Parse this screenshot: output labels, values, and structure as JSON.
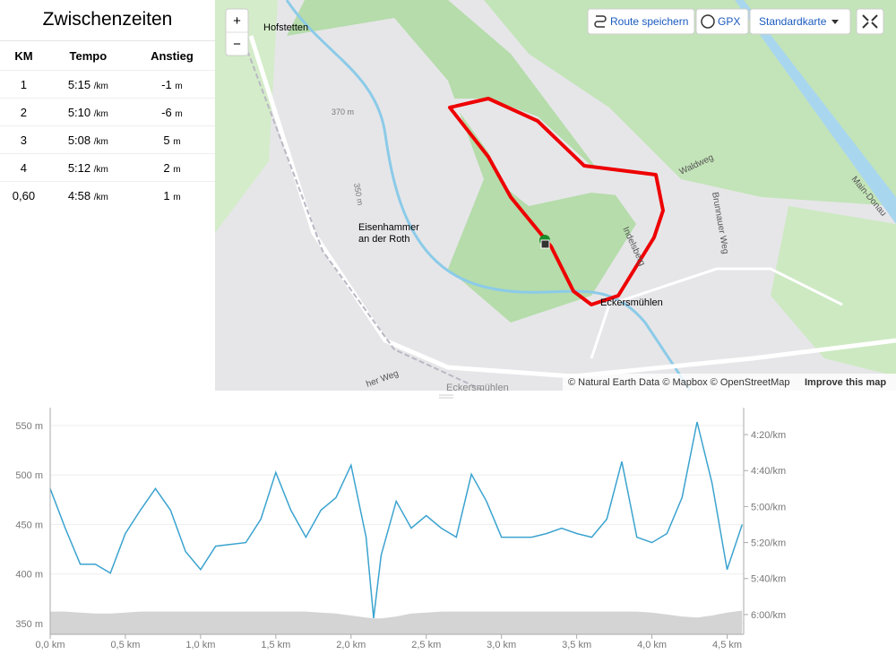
{
  "splits": {
    "title": "Zwischenzeiten",
    "headers": [
      "KM",
      "Tempo",
      "Anstieg"
    ],
    "rows": [
      {
        "km": "1",
        "pace": "5:15",
        "pace_unit": "/km",
        "climb": "-1",
        "climb_unit": "m"
      },
      {
        "km": "2",
        "pace": "5:10",
        "pace_unit": "/km",
        "climb": "-6",
        "climb_unit": "m"
      },
      {
        "km": "3",
        "pace": "5:08",
        "pace_unit": "/km",
        "climb": "5",
        "climb_unit": "m"
      },
      {
        "km": "4",
        "pace": "5:12",
        "pace_unit": "/km",
        "climb": "2",
        "climb_unit": "m"
      },
      {
        "km": "0,60",
        "pace": "4:58",
        "pace_unit": "/km",
        "climb": "1",
        "climb_unit": "m"
      }
    ]
  },
  "map": {
    "buttons": {
      "save": "Route speichern",
      "gpx": "GPX",
      "style": "Standardkarte",
      "zoom_in": "+",
      "zoom_out": "−"
    },
    "labels": {
      "hofstetten": "Hofstetten",
      "eisenhammer_1": "Eisenhammer",
      "eisenhammer_2": "an der Roth",
      "eckersmuehlen": "Eckersmühlen",
      "eckersmuehlen_2": "Eckersmühlen",
      "waldweg": "Waldweg",
      "brunnauer": "Brunnauer Weg",
      "contour_370": "370 m",
      "contour_350": "350 m",
      "canal": "Main-Donau",
      "weg": "her Weg",
      "indel": "Indelsberg"
    },
    "attribution": "© Natural Earth Data © Mapbox © OpenStreetMap",
    "improve": "Improve this map"
  },
  "chart_data": {
    "type": "line",
    "x": [
      0,
      0.1,
      0.2,
      0.3,
      0.4,
      0.5,
      0.6,
      0.7,
      0.8,
      0.9,
      1.0,
      1.1,
      1.2,
      1.3,
      1.4,
      1.5,
      1.6,
      1.7,
      1.8,
      1.9,
      2.0,
      2.1,
      2.15,
      2.2,
      2.3,
      2.4,
      2.5,
      2.6,
      2.7,
      2.8,
      2.9,
      3.0,
      3.1,
      3.2,
      3.3,
      3.4,
      3.5,
      3.6,
      3.7,
      3.8,
      3.9,
      4.0,
      4.1,
      4.2,
      4.3,
      4.4,
      4.5,
      4.6
    ],
    "series": [
      {
        "color": "#3ba3cf",
        "axis": "y2",
        "values": [
          290,
          312,
          332,
          332,
          337,
          315,
          302,
          290,
          302,
          325,
          335,
          322,
          321,
          320,
          307,
          281,
          302,
          317,
          302,
          295,
          277,
          317,
          362,
          327,
          297,
          312,
          305,
          312,
          317,
          282,
          297,
          317,
          317,
          317,
          315,
          312,
          315,
          317,
          307,
          275,
          317,
          320,
          315,
          295,
          253,
          287,
          335,
          310
        ]
      },
      {
        "color": "#d4d4d4",
        "fill": true,
        "values": [
          362,
          362,
          361,
          360,
          360,
          361,
          362,
          362,
          362,
          362,
          362,
          362,
          362,
          362,
          362,
          362,
          362,
          362,
          361,
          360,
          358,
          356,
          355,
          355,
          357,
          360,
          361,
          362,
          362,
          362,
          362,
          362,
          362,
          362,
          362,
          362,
          362,
          362,
          362,
          362,
          362,
          361,
          359,
          357,
          356,
          358,
          361,
          363
        ]
      }
    ],
    "xlim": [
      0,
      4.61
    ],
    "xticks": [
      {
        "value": 0,
        "label": "0,0 km"
      },
      {
        "value": 0.5,
        "label": "0,5 km"
      },
      {
        "value": 1,
        "label": "1,0 km"
      },
      {
        "value": 1.5,
        "label": "1,5 km"
      },
      {
        "value": 2,
        "label": "2,0 km"
      },
      {
        "value": 2.5,
        "label": "2,5 km"
      },
      {
        "value": 3,
        "label": "3,0 km"
      },
      {
        "value": 3.5,
        "label": "3,5 km"
      },
      {
        "value": 4,
        "label": "4,0 km"
      },
      {
        "value": 4.5,
        "label": "4,5 km"
      }
    ],
    "ylim": [
      339,
      559
    ],
    "yticks": [
      {
        "value": 350,
        "label": "350 m"
      },
      {
        "value": 400,
        "label": "400 m"
      },
      {
        "value": 450,
        "label": "450 m"
      },
      {
        "value": 500,
        "label": "500 m"
      },
      {
        "value": 550,
        "label": "550 m"
      }
    ],
    "y2lim": [
      371,
      250
    ],
    "y2ticks": [
      {
        "value": 260,
        "label": "4:20/km"
      },
      {
        "value": 280,
        "label": "4:40/km"
      },
      {
        "value": 300,
        "label": "5:00/km"
      },
      {
        "value": 320,
        "label": "5:20/km"
      },
      {
        "value": 340,
        "label": "5:40/km"
      },
      {
        "value": 360,
        "label": "6:00/km"
      }
    ],
    "grid": true
  }
}
